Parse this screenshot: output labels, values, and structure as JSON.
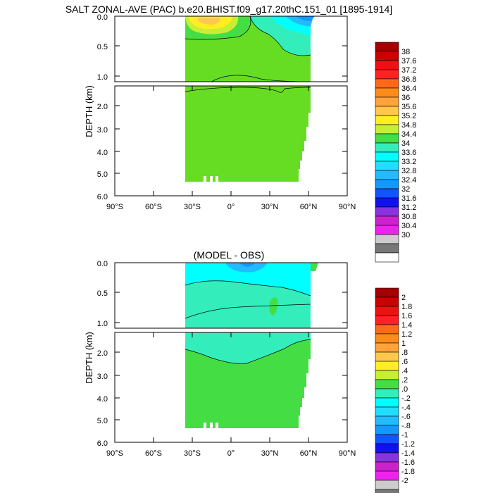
{
  "chart_data": [
    {
      "type": "heatmap",
      "title": "SALT ZONAL-AVE (PAC) b.e20.BHIST.f09_g17.20thC.151_01 [1895-1914]",
      "ylabel": "DEPTH (km)",
      "xlabel": "",
      "x_tick_labels": [
        "90°S",
        "60°S",
        "30°S",
        "0°",
        "30°N",
        "60°N",
        "90°N"
      ],
      "y_tick_labels_upper": [
        "0.0",
        "0.5",
        "1.0"
      ],
      "y_tick_labels_lower": [
        "2.0",
        "3.0",
        "4.0",
        "5.0",
        "6.0"
      ],
      "xlim": [
        -90,
        90
      ],
      "ylim_upper": [
        0,
        1.1
      ],
      "ylim_lower": [
        1.2,
        6.0
      ],
      "colorbar_labels": [
        "38",
        "37.6",
        "37.2",
        "36.8",
        "36.4",
        "36",
        "35.6",
        "35.2",
        "34.8",
        "34.4",
        "34",
        "33.6",
        "33.2",
        "32.8",
        "32.4",
        "32",
        "31.6",
        "31.2",
        "30.8",
        "30.4",
        "30"
      ],
      "colorbar_colors": [
        "#a50000",
        "#cc0000",
        "#ee1111",
        "#ff2222",
        "#ff6a1a",
        "#ff8c1a",
        "#ffa33a",
        "#ffc84a",
        "#ffee22",
        "#c8ee33",
        "#44dd44",
        "#33eebb",
        "#00ffff",
        "#22ddff",
        "#22bbff",
        "#1199ff",
        "#1155ff",
        "#1111ee",
        "#8833dd",
        "#cc22cc",
        "#ee22ee",
        "#cccccc",
        "#777777",
        "#ffffff"
      ]
    },
    {
      "type": "heatmap",
      "title": "(MODEL - OBS)",
      "ylabel": "DEPTH (km)",
      "xlabel": "",
      "x_tick_labels": [
        "90°S",
        "60°S",
        "30°S",
        "0°",
        "30°N",
        "60°N",
        "90°N"
      ],
      "y_tick_labels_upper": [
        "0.0",
        "0.5",
        "1.0"
      ],
      "y_tick_labels_lower": [
        "2.0",
        "3.0",
        "4.0",
        "5.0",
        "6.0"
      ],
      "xlim": [
        -90,
        90
      ],
      "ylim_upper": [
        0,
        1.1
      ],
      "ylim_lower": [
        1.2,
        6.0
      ],
      "colorbar_labels": [
        "2",
        "1.8",
        "1.6",
        "1.4",
        "1.2",
        "1",
        ".8",
        ".6",
        ".4",
        ".2",
        ".0",
        "-.2",
        "-.4",
        "-.6",
        "-.8",
        "-1",
        "-1.2",
        "-1.4",
        "-1.6",
        "-1.8",
        "-2"
      ],
      "colorbar_colors": [
        "#a50000",
        "#cc0000",
        "#ee1111",
        "#ff2222",
        "#ff6a1a",
        "#ff8c1a",
        "#ffa33a",
        "#ffc84a",
        "#ffee22",
        "#c8ee33",
        "#44dd44",
        "#33eebb",
        "#00ffff",
        "#22ddff",
        "#22bbff",
        "#1199ff",
        "#1155ff",
        "#1111ee",
        "#8833dd",
        "#cc22cc",
        "#ee22ee",
        "#cccccc",
        "#777777",
        "#ffffff"
      ]
    }
  ],
  "colors": {
    "field_main": "#66dd22",
    "field_secondary_green": "#44dd44",
    "field_warm": "#ffee22",
    "field_orange": "#ffc84a",
    "field_cyan": "#00ffff",
    "field_light_cyan": "#33eebb",
    "field_blue": "#22bbff",
    "frame": "#000000"
  }
}
